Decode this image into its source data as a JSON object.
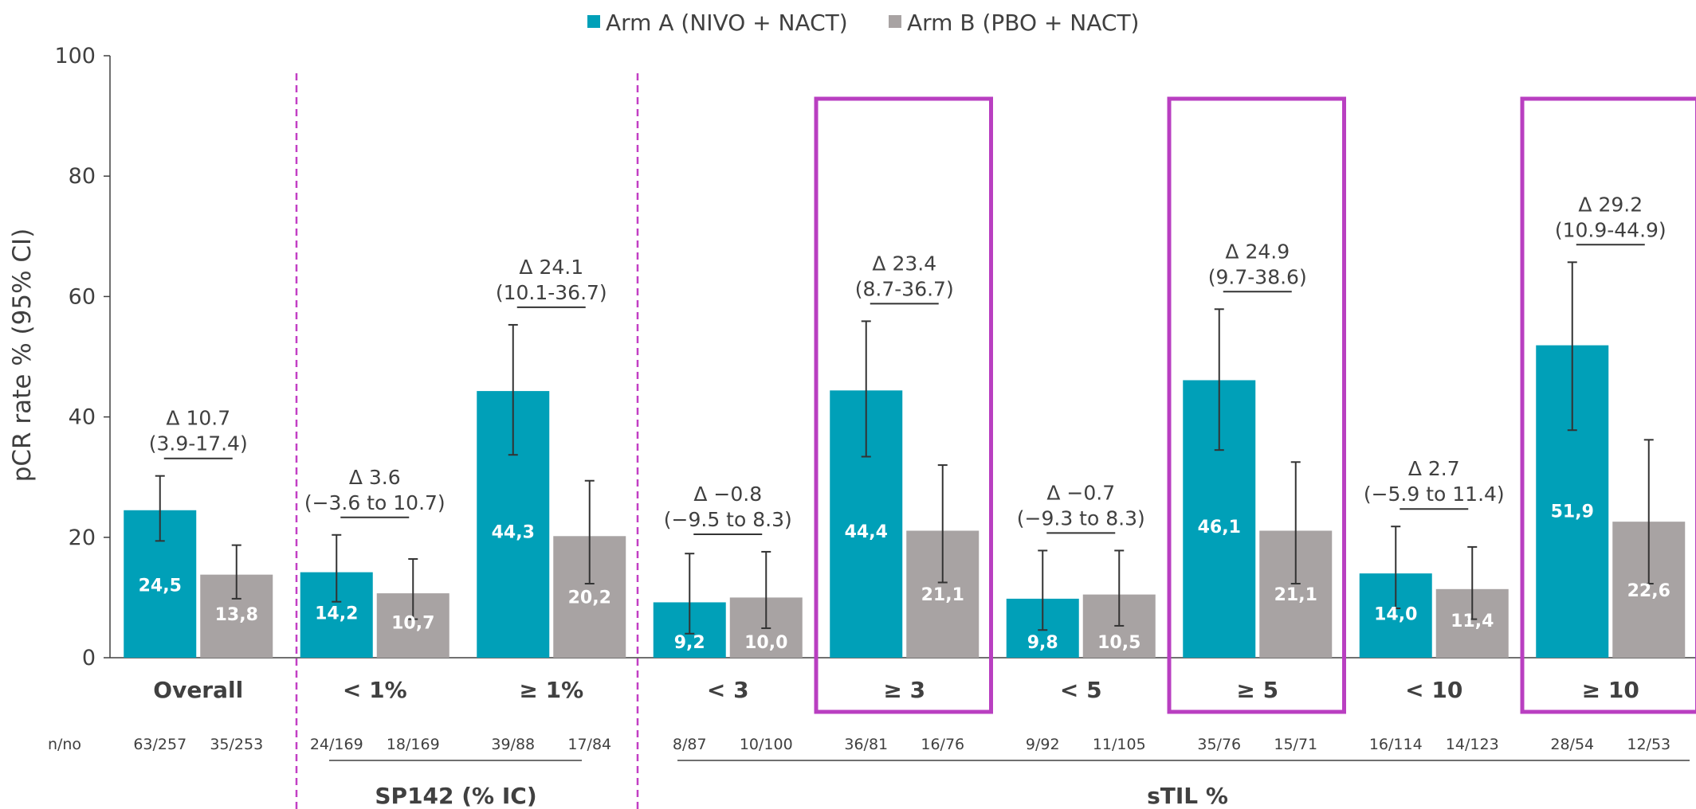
{
  "chart_data": {
    "type": "bar",
    "ylabel": "pCR rate % (95% CI)",
    "ylim": [
      0,
      100
    ],
    "yticks": [
      "0",
      "20",
      "40",
      "60",
      "80",
      "100"
    ],
    "legend_position": "top-center",
    "series": [
      {
        "name": "Arm A (NIVO + NACT)",
        "color": "#00a0b8"
      },
      {
        "name": "Arm B (PBO + NACT)",
        "color": "#a8a3a3"
      }
    ],
    "categories": [
      {
        "label": "Overall",
        "a": 24.5,
        "a_label": "24,5",
        "a_ci": [
          19.4,
          30.2
        ],
        "b": 13.8,
        "b_label": "13,8",
        "b_ci": [
          9.8,
          18.7
        ],
        "n_a": "63/257",
        "n_b": "35/253",
        "delta": "Δ 10.7",
        "ci": "(3.9-17.4)",
        "highlight": false
      },
      {
        "label": "< 1%",
        "a": 14.2,
        "a_label": "14,2",
        "a_ci": [
          9.3,
          20.4
        ],
        "b": 10.7,
        "b_label": "10,7",
        "b_ci": [
          6.4,
          16.4
        ],
        "n_a": "24/169",
        "n_b": "18/169",
        "delta": "Δ 3.6",
        "ci": "(−3.6 to 10.7)",
        "highlight": false
      },
      {
        "label": "≥ 1%",
        "a": 44.3,
        "a_label": "44,3",
        "a_ci": [
          33.7,
          55.3
        ],
        "b": 20.2,
        "b_label": "20,2",
        "b_ci": [
          12.3,
          29.4
        ],
        "n_a": "39/88",
        "n_b": "17/84",
        "delta": "Δ 24.1",
        "ci": "(10.1-36.7)",
        "highlight": false
      },
      {
        "label": "< 3",
        "a": 9.2,
        "a_label": "9,2",
        "a_ci": [
          4.0,
          17.3
        ],
        "b": 10.0,
        "b_label": "10,0",
        "b_ci": [
          4.9,
          17.6
        ],
        "n_a": "8/87",
        "n_b": "10/100",
        "delta": "Δ −0.8",
        "ci": "(−9.5 to 8.3)",
        "highlight": false
      },
      {
        "label": "≥ 3",
        "a": 44.4,
        "a_label": "44,4",
        "a_ci": [
          33.4,
          55.9
        ],
        "b": 21.1,
        "b_label": "21,1",
        "b_ci": [
          12.5,
          32.0
        ],
        "n_a": "36/81",
        "n_b": "16/76",
        "delta": "Δ 23.4",
        "ci": "(8.7-36.7)",
        "highlight": true
      },
      {
        "label": "< 5",
        "a": 9.8,
        "a_label": "9,8",
        "a_ci": [
          4.6,
          17.8
        ],
        "b": 10.5,
        "b_label": "10,5",
        "b_ci": [
          5.3,
          17.8
        ],
        "n_a": "9/92",
        "n_b": "11/105",
        "delta": "Δ −0.7",
        "ci": "(−9.3 to 8.3)",
        "highlight": false
      },
      {
        "label": "≥ 5",
        "a": 46.1,
        "a_label": "46,1",
        "a_ci": [
          34.5,
          57.9
        ],
        "b": 21.1,
        "b_label": "21,1",
        "b_ci": [
          12.3,
          32.5
        ],
        "n_a": "35/76",
        "n_b": "15/71",
        "delta": "Δ 24.9",
        "ci": "(9.7-38.6)",
        "highlight": true
      },
      {
        "label": "< 10",
        "a": 14.0,
        "a_label": "14,0",
        "a_ci": [
          8.2,
          21.8
        ],
        "b": 11.4,
        "b_label": "11,4",
        "b_ci": [
          6.4,
          18.4
        ],
        "n_a": "16/114",
        "n_b": "14/123",
        "delta": "Δ 2.7",
        "ci": "(−5.9 to 11.4)",
        "highlight": false
      },
      {
        "label": "≥ 10",
        "a": 51.9,
        "a_label": "51,9",
        "a_ci": [
          37.8,
          65.7
        ],
        "b": 22.6,
        "b_label": "22,6",
        "b_ci": [
          12.3,
          36.2
        ],
        "n_a": "28/54",
        "n_b": "12/53",
        "delta": "Δ 29.2",
        "ci": "(10.9-44.9)",
        "highlight": true
      }
    ],
    "row_label": "n/no",
    "groups": [
      "SP142 (% IC)",
      "sTIL %"
    ]
  },
  "colors": {
    "arm_a": "#00a0b8",
    "arm_b": "#a8a3a3",
    "highlight": "#b93fc1",
    "divider": "#c23fc4",
    "text": "#404040"
  }
}
